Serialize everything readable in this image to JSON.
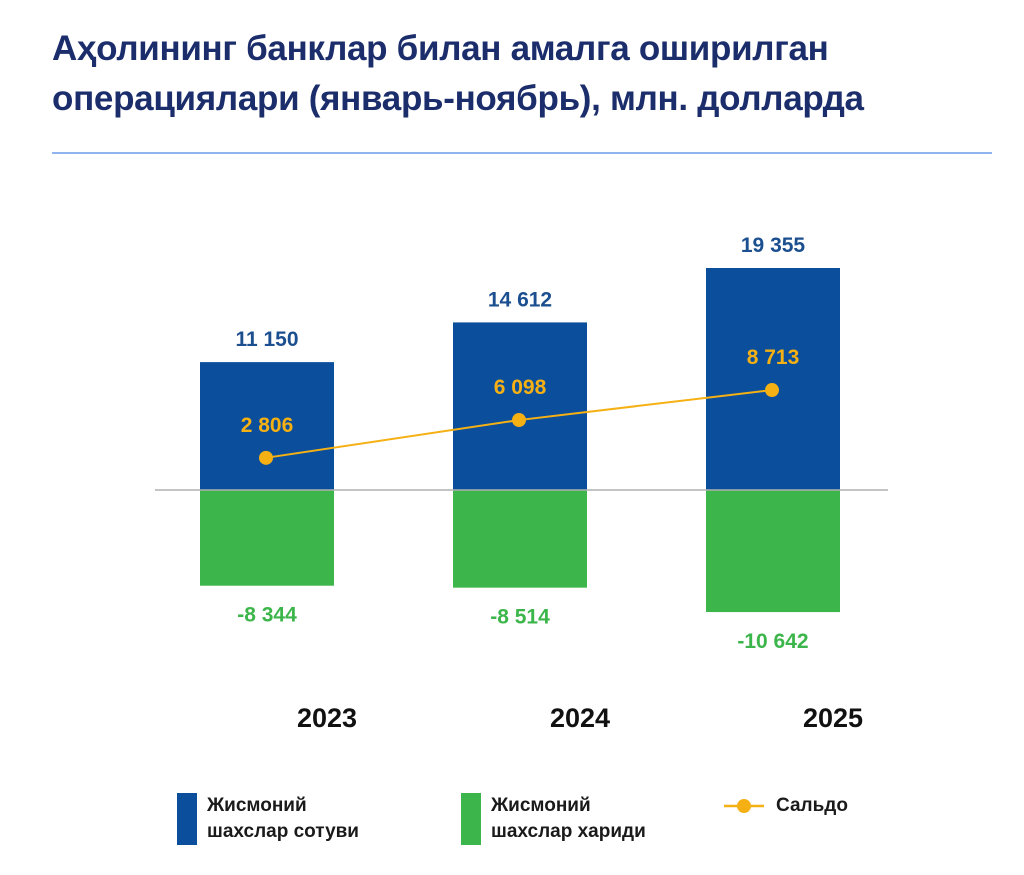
{
  "title": "Аҳолининг банклар билан амалга оширилган операциялари (январь-ноябрь), млн. долларда",
  "colors": {
    "sales": "#0b4f9c",
    "purchases": "#3cb54a",
    "balance": "#f5b014",
    "title": "#1b2d6b"
  },
  "legend": {
    "sales": "Жисмоний шахслар сотуви",
    "purchases": "Жисмоний шахслар хариди",
    "balance": "Сальдо"
  },
  "chart_data": {
    "type": "bar",
    "categories": [
      "2023",
      "2024",
      "2025"
    ],
    "series": [
      {
        "name": "Жисмоний шахслар сотуви",
        "type": "bar",
        "values": [
          11150,
          14612,
          19355
        ],
        "labels": [
          "11 150",
          "14 612",
          "19 355"
        ]
      },
      {
        "name": "Жисмоний шахслар хариди",
        "type": "bar",
        "values": [
          -8344,
          -8514,
          -10642
        ],
        "labels": [
          "-8 344",
          "-8 514",
          "-10 642"
        ]
      },
      {
        "name": "Сальдо",
        "type": "line",
        "values": [
          2806,
          6098,
          8713
        ],
        "labels": [
          "2 806",
          "6 098",
          "8 713"
        ]
      }
    ],
    "grid": false,
    "legend_position": "bottom"
  }
}
